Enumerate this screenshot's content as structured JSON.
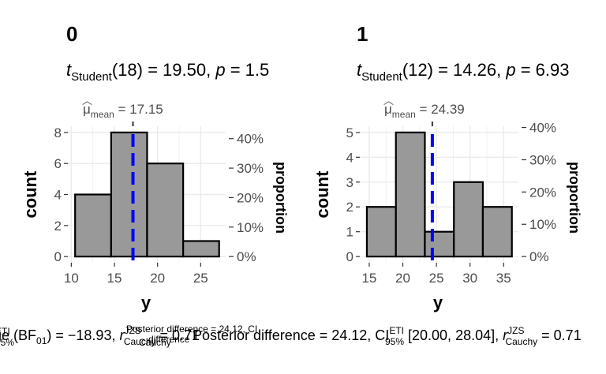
{
  "panels": [
    {
      "panel_label": "0",
      "stat_prefix": "t",
      "stat_sub": "Student",
      "stat_rest": "(18) = 19.50, ",
      "p_symbol": "p",
      "p_rest": " = 1.5",
      "mean_symbol": "μ",
      "mean_sub": "mean",
      "mean_value_text": " = 17.15"
    },
    {
      "panel_label": "1",
      "stat_prefix": "t",
      "stat_sub": "Student",
      "stat_rest": "(12) = 14.26, ",
      "p_symbol": "p",
      "p_rest": " = 6.93",
      "mean_symbol": "μ",
      "mean_sub": "mean",
      "mean_value_text": " = 24.39"
    }
  ],
  "footer": {
    "part1": "ETI",
    "part2": "ge (BF",
    "part3": "01",
    "part4": ") = −18.93, ",
    "part5": "r",
    "part6": "JZS",
    "part7": "Cauchy",
    "part8": " = 0.71",
    "overlap_text": "Posterior difference = 24.12, CI",
    "ci_super": "ETI",
    "ci_sub": "95%",
    "ci_range": " [20.00, 28.04], ",
    "r_symbol": "r",
    "r_super": "JZS",
    "r_sub": "Cauchy",
    "r_value": " = 0.71",
    "left_fragment": "95%",
    "left_fragment2": "Cauchy",
    "left_fragment3": "difference"
  },
  "colors": {
    "bar_fill": "#999999",
    "bar_stroke": "#000000",
    "mean_line": "#0000ff",
    "grid": "#ebebeb",
    "axis_text": "#4d4d4d"
  },
  "chart_data": [
    {
      "type": "bar",
      "title": "0",
      "xlabel": "y",
      "ylabel": "count",
      "y2label": "proportion",
      "bins": [
        {
          "x0": 10.44,
          "x1": 14.62,
          "count": 4
        },
        {
          "x0": 14.62,
          "x1": 18.79,
          "count": 8
        },
        {
          "x0": 18.79,
          "x1": 22.97,
          "count": 6
        },
        {
          "x0": 22.97,
          "x1": 27.14,
          "count": 1
        }
      ],
      "mean": 17.15,
      "xlim": [
        9.6,
        27.9
      ],
      "ylim": [
        -0.4,
        8.4
      ],
      "xticks": [
        10,
        15,
        20,
        25
      ],
      "xtick_labels": [
        "10",
        "15",
        "20",
        "25"
      ],
      "yticks": [
        0,
        2,
        4,
        6,
        8
      ],
      "ytick_labels": [
        "0",
        "2",
        "4",
        "6",
        "8"
      ],
      "y2ticks": [
        0,
        1.9,
        3.8,
        5.7,
        7.6
      ],
      "y2tick_labels": [
        "0%",
        "10%",
        "20%",
        "30%",
        "40%"
      ],
      "grid": true
    },
    {
      "type": "bar",
      "title": "1",
      "xlabel": "y",
      "ylabel": "count",
      "y2label": "proportion",
      "bins": [
        {
          "x0": 14.65,
          "x1": 18.97,
          "count": 2
        },
        {
          "x0": 18.97,
          "x1": 23.28,
          "count": 5
        },
        {
          "x0": 23.28,
          "x1": 27.6,
          "count": 1
        },
        {
          "x0": 27.6,
          "x1": 31.91,
          "count": 3
        },
        {
          "x0": 31.91,
          "x1": 36.23,
          "count": 2
        }
      ],
      "mean": 24.39,
      "xlim": [
        13.6,
        37.2
      ],
      "ylim": [
        -0.25,
        5.25
      ],
      "xticks": [
        15,
        20,
        25,
        30,
        35
      ],
      "xtick_labels": [
        "15",
        "20",
        "25",
        "30",
        "35"
      ],
      "yticks": [
        0,
        1,
        2,
        3,
        4,
        5
      ],
      "ytick_labels": [
        "0",
        "1",
        "2",
        "3",
        "4",
        "5"
      ],
      "y2ticks": [
        0,
        1.3,
        2.6,
        3.9,
        5.2
      ],
      "y2tick_labels": [
        "0%",
        "10%",
        "20%",
        "30%",
        "40%"
      ],
      "grid": true
    }
  ]
}
